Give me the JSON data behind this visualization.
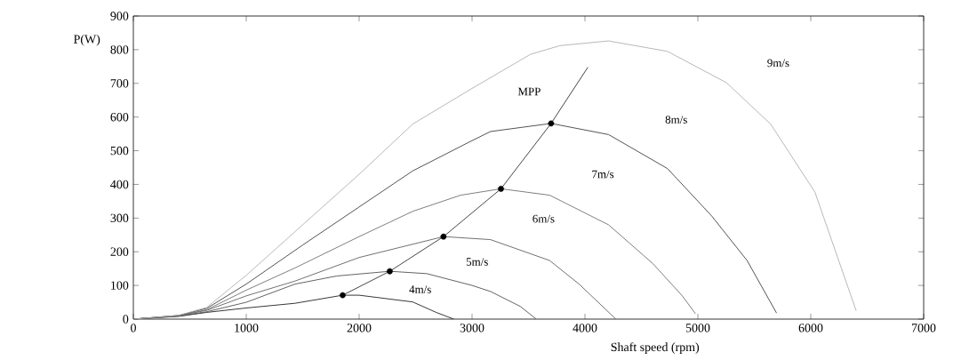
{
  "chart_data": {
    "type": "line",
    "xlabel": "Shaft speed (rpm)",
    "ylabel": "P(W)",
    "xlim": [
      0,
      7000
    ],
    "ylim": [
      0,
      900
    ],
    "xticks": [
      0,
      1000,
      2000,
      3000,
      4000,
      5000,
      6000,
      7000
    ],
    "yticks": [
      0,
      100,
      200,
      300,
      400,
      500,
      600,
      700,
      800,
      900
    ],
    "grid": false,
    "series": [
      {
        "color": "#202020",
        "x": [
          0,
          400,
          651,
          1000,
          1432,
          1854,
          2000,
          2474,
          2682,
          2839
        ],
        "values": [
          0,
          8,
          20,
          33,
          47,
          71,
          71,
          51,
          20,
          0
        ]
      },
      {
        "color": "#505050",
        "x": [
          0,
          400,
          651,
          1000,
          1432,
          1800,
          2271,
          2600,
          3000,
          3164,
          3426,
          3569
        ],
        "values": [
          0,
          9,
          22,
          50,
          104,
          128,
          142,
          135,
          100,
          82,
          38,
          0
        ]
      },
      {
        "color": "#606060",
        "x": [
          0,
          400,
          651,
          1000,
          1432,
          2000,
          2747,
          3164,
          3687,
          3948,
          4274
        ],
        "values": [
          0,
          10,
          26,
          69,
          113,
          183,
          245,
          236,
          174,
          104,
          0
        ]
      },
      {
        "color": "#707070",
        "x": [
          0,
          400,
          651,
          1000,
          1432,
          2000,
          2474,
          2900,
          3256,
          3687,
          4209,
          4601,
          4862,
          4979
        ],
        "values": [
          0,
          10,
          28,
          86,
          152,
          245,
          320,
          368,
          387,
          368,
          280,
          165,
          69,
          16
        ]
      },
      {
        "color": "#404040",
        "x": [
          0,
          400,
          651,
          1000,
          1500,
          2000,
          2474,
          3000,
          3164,
          3700,
          4209,
          4731,
          5123,
          5436,
          5697
        ],
        "values": [
          0,
          11,
          32,
          104,
          220,
          333,
          440,
          530,
          557,
          581,
          548,
          447,
          306,
          174,
          18
        ]
      },
      {
        "color": "#b0b0b0",
        "x": [
          0,
          400,
          651,
          1000,
          1500,
          2000,
          2474,
          3000,
          3516,
          3778,
          4209,
          4731,
          5253,
          5645,
          6037,
          6402
        ],
        "values": [
          0,
          11,
          35,
          130,
          280,
          430,
          579,
          685,
          786,
          812,
          826,
          795,
          702,
          579,
          377,
          25
        ]
      },
      {
        "color": "#303030",
        "x": [
          1854,
          2271,
          2747,
          3256,
          3700,
          4026
        ],
        "values": [
          71,
          142,
          245,
          387,
          581,
          748
        ]
      },
      {
        "type": "scatter",
        "marker": "circle",
        "color": "#000000",
        "x": [
          1854,
          2271,
          2747,
          3256,
          3700
        ],
        "values": [
          71,
          142,
          245,
          387,
          581
        ]
      }
    ],
    "annotations": [
      "9m/s",
      "8m/s",
      "7m/s",
      "6m/s",
      "5m/s",
      "4m/s",
      "MPP"
    ]
  }
}
